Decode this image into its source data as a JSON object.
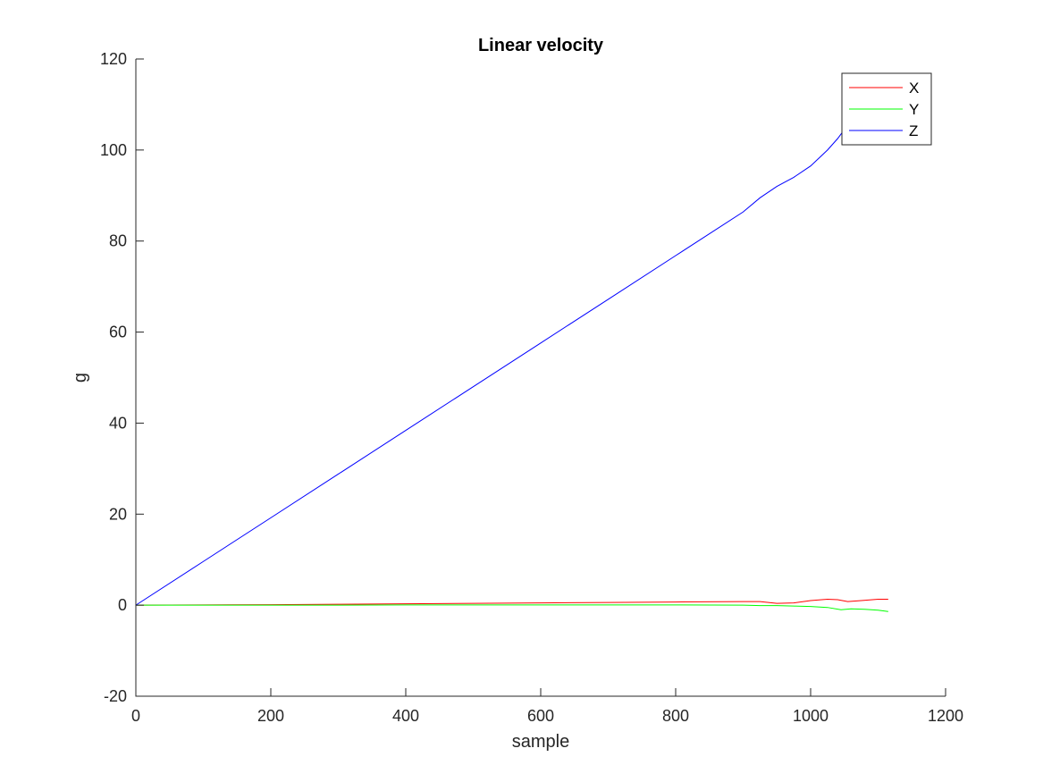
{
  "chart_data": {
    "type": "line",
    "title": "Linear velocity",
    "xlabel": "sample",
    "ylabel": "g",
    "xlim": [
      0,
      1200
    ],
    "ylim": [
      -20,
      120
    ],
    "xticks": [
      0,
      200,
      400,
      600,
      800,
      1000,
      1200
    ],
    "yticks": [
      -20,
      0,
      20,
      40,
      60,
      80,
      100,
      120
    ],
    "grid": false,
    "legend_position": "top-right",
    "series": [
      {
        "name": "X",
        "color": "#ff0000",
        "x": [
          0,
          100,
          200,
          300,
          400,
          500,
          600,
          700,
          800,
          900,
          925,
          950,
          975,
          1000,
          1025,
          1040,
          1055,
          1075,
          1100,
          1115
        ],
        "y": [
          0,
          0.05,
          0.1,
          0.2,
          0.3,
          0.4,
          0.5,
          0.6,
          0.7,
          0.8,
          0.8,
          0.4,
          0.5,
          1.0,
          1.3,
          1.2,
          0.8,
          1.0,
          1.3,
          1.3
        ]
      },
      {
        "name": "Y",
        "color": "#00ff00",
        "x": [
          0,
          100,
          200,
          300,
          400,
          500,
          600,
          700,
          800,
          900,
          925,
          950,
          975,
          1000,
          1025,
          1045,
          1060,
          1080,
          1100,
          1115
        ],
        "y": [
          0,
          0,
          0,
          0,
          0.05,
          0.05,
          0.05,
          0.05,
          0.05,
          0.0,
          -0.1,
          -0.1,
          -0.2,
          -0.3,
          -0.5,
          -1.0,
          -0.8,
          -0.9,
          -1.1,
          -1.4
        ]
      },
      {
        "name": "Z",
        "color": "#0000ff",
        "x": [
          0,
          100,
          200,
          300,
          400,
          500,
          600,
          700,
          800,
          900,
          925,
          950,
          975,
          1000,
          1025,
          1040,
          1050,
          1060
        ],
        "y": [
          0,
          9.6,
          19.2,
          28.8,
          38.4,
          48.0,
          57.6,
          67.2,
          76.8,
          86.4,
          89.5,
          92.0,
          94.0,
          96.5,
          100.0,
          102.5,
          104.5,
          106.5
        ]
      }
    ]
  }
}
